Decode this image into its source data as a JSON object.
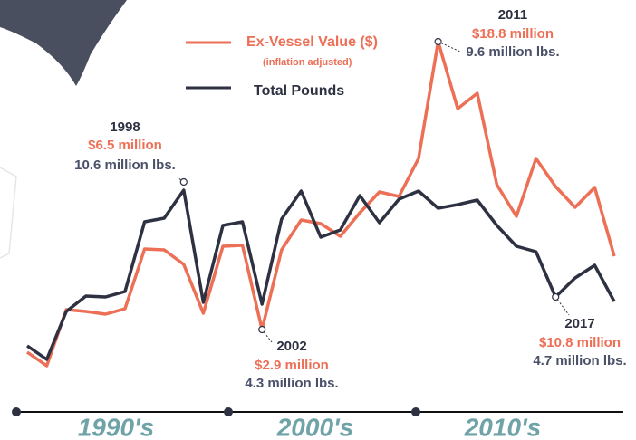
{
  "chart_data": {
    "type": "line",
    "categories": [
      null,
      null,
      null,
      null,
      null,
      null,
      null,
      null,
      "1998",
      null,
      null,
      null,
      "2002",
      null,
      null,
      null,
      null,
      null,
      null,
      null,
      null,
      "2011",
      null,
      null,
      null,
      null,
      null,
      "2017",
      null,
      null,
      null
    ],
    "legend_note": "(inflation adjusted)",
    "ylim": [
      0,
      21.1
    ],
    "decades": [
      "1990's",
      "2000's",
      "2010's"
    ],
    "series": [
      {
        "name": "Ex-Vessel Value ($)",
        "color": "#ec6f56",
        "values": [
          1.65,
          0.9,
          4.0,
          3.9,
          3.75,
          4.05,
          7.35,
          7.3,
          6.5,
          3.8,
          7.5,
          7.55,
          2.9,
          7.3,
          8.95,
          8.75,
          8.05,
          9.35,
          10.5,
          10.25,
          12.35,
          18.8,
          15.1,
          15.95,
          10.9,
          9.15,
          12.35,
          10.8,
          9.65,
          10.75,
          6.95
        ],
        "value_labels": [
          null,
          null,
          null,
          null,
          null,
          null,
          null,
          null,
          "$6.5 million",
          null,
          null,
          null,
          "$2.9 million",
          null,
          null,
          null,
          null,
          null,
          null,
          null,
          null,
          "$18.8 million",
          null,
          null,
          null,
          null,
          null,
          "$10.8 million",
          null,
          null,
          null
        ]
      },
      {
        "name": "Total Pounds",
        "color": "#2e3142",
        "values": [
          2.0,
          1.25,
          3.9,
          4.75,
          4.7,
          5.0,
          8.85,
          9.05,
          10.6,
          4.4,
          8.65,
          8.85,
          4.3,
          9.0,
          10.55,
          8.0,
          8.4,
          10.3,
          8.8,
          10.1,
          10.55,
          9.6,
          9.8,
          10.05,
          8.65,
          7.5,
          7.2,
          4.7,
          5.75,
          6.45,
          4.45
        ],
        "value_labels": [
          null,
          null,
          null,
          null,
          null,
          null,
          null,
          null,
          "10.6 million lbs.",
          null,
          null,
          null,
          "4.3 million lbs.",
          null,
          null,
          null,
          null,
          null,
          null,
          null,
          null,
          "9.6 million lbs.",
          null,
          null,
          null,
          null,
          null,
          "4.7 million lbs.",
          null,
          null,
          null
        ]
      }
    ]
  }
}
